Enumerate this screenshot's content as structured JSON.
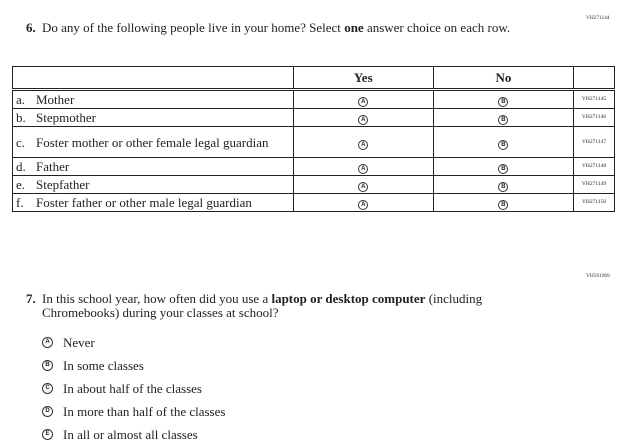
{
  "q6": {
    "code": "VH271144",
    "number": "6.",
    "text_before": "Do any of the following people live in your home? Select ",
    "text_bold": "one",
    "text_after": " answer choice on each row.",
    "columns": [
      "",
      "Yes",
      "No",
      ""
    ],
    "bubble_yes": "A",
    "bubble_no": "B",
    "rows": [
      {
        "letter": "a.",
        "label": "Mother",
        "code": "VH271145"
      },
      {
        "letter": "b.",
        "label": "Stepmother",
        "code": "VH271146"
      },
      {
        "letter": "c.",
        "label": "Foster mother or other female legal guardian",
        "code": "VH271147"
      },
      {
        "letter": "d.",
        "label": "Father",
        "code": "VH271148"
      },
      {
        "letter": "e.",
        "label": "Stepfather",
        "code": "VH271149"
      },
      {
        "letter": "f.",
        "label": "Foster father or other male legal guardian",
        "code": "VH271150"
      }
    ]
  },
  "q7": {
    "code": "VH591969",
    "number": "7.",
    "text_before": "In this school year, how often did you use a ",
    "text_bold": "laptop or desktop computer",
    "text_after": " (including Chromebooks) during your classes at school?",
    "options": [
      {
        "letter": "A",
        "label": "Never"
      },
      {
        "letter": "B",
        "label": "In some classes"
      },
      {
        "letter": "C",
        "label": "In about half of the classes"
      },
      {
        "letter": "D",
        "label": "In more than half of the classes"
      },
      {
        "letter": "E",
        "label": "In all or almost all classes"
      }
    ]
  }
}
